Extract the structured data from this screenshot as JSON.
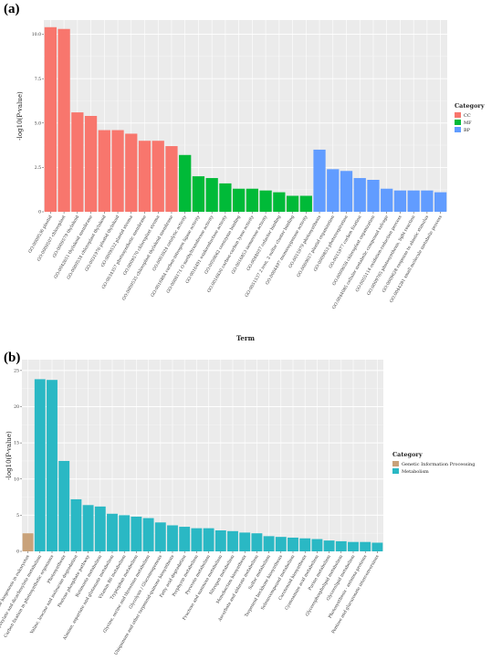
{
  "panels": {
    "a_label": "(a)",
    "b_label": "(b)"
  },
  "chart_data": [
    {
      "type": "bar",
      "xlabel": "Term",
      "ylabel": "-log10(P-value)",
      "ylim": [
        0,
        10.8
      ],
      "yticks": [
        0,
        2.5,
        5.0,
        7.5,
        10.0
      ],
      "ytick_labels": [
        "0",
        "2.5",
        "5.0",
        "7.5",
        "10.0"
      ],
      "grid": true,
      "legend": {
        "title": "Category",
        "position": "right",
        "entries": [
          {
            "name": "CC",
            "color": "#F8766D"
          },
          {
            "name": "MF",
            "color": "#00BA38"
          },
          {
            "name": "BP",
            "color": "#619CFF"
          }
        ]
      },
      "categories": [
        "GO:0009536 plastid",
        "GO:0009507 chloroplast",
        "GO:0009579 thylakoid",
        "GO:0042651 thylakoid membrane",
        "GO:0009534 chloroplast thylakoid",
        "GO:0031976 plastid thylakoid",
        "GO:0009532 plastid stroma",
        "GO:0034357 photosynthetic membrane",
        "GO:0009570 chloroplast stroma",
        "GO:0009535 chloroplast thylakoid membrane",
        "GO:0003824 catalytic activity",
        "GO:0016884 carbon-nitrogen ligase activity",
        "GO:0008171 O-methyltransferase activity",
        "GO:0016491 oxidoreductase activity",
        "GO:0050662 coenzyme binding",
        "GO:0016830 carbon-carbon lyase activity",
        "GO:0016853 isomerase activity",
        "GO:0048037 cofactor binding",
        "GO:0051537 2 iron, 2 sulfur cluster binding",
        "GO:0004497 monooxygenase activity",
        "GO:0015979 photosynthesis",
        "GO:0009657 plastid organization",
        "GO:0009853 photorespiration",
        "GO:0015977 carbon fixation",
        "GO:0009658 chloroplast organization",
        "GO:0044085 cellular metabolic compound salvage",
        "GO:0055114 oxidation-reduction process",
        "GO:0009765 photosynthesis, light reaction",
        "GO:0009628 response to abiotic stimulus",
        "GO:0044281 small molecule metabolic process"
      ],
      "groups": [
        "CC",
        "CC",
        "CC",
        "CC",
        "CC",
        "CC",
        "CC",
        "CC",
        "CC",
        "CC",
        "MF",
        "MF",
        "MF",
        "MF",
        "MF",
        "MF",
        "MF",
        "MF",
        "MF",
        "MF",
        "BP",
        "BP",
        "BP",
        "BP",
        "BP",
        "BP",
        "BP",
        "BP",
        "BP",
        "BP"
      ],
      "values": [
        10.4,
        10.3,
        5.6,
        5.4,
        4.6,
        4.6,
        4.4,
        4.0,
        4.0,
        3.7,
        3.2,
        2.0,
        1.9,
        1.6,
        1.3,
        1.3,
        1.2,
        1.1,
        0.9,
        0.9,
        3.5,
        2.4,
        2.3,
        1.9,
        1.8,
        1.3,
        1.2,
        1.2,
        1.2,
        1.1
      ]
    },
    {
      "type": "bar",
      "xlabel": "",
      "ylabel": "-log10(P-value)",
      "ylim": [
        0,
        26.5
      ],
      "yticks": [
        0,
        5,
        10,
        15,
        20,
        25
      ],
      "ytick_labels": [
        "0",
        "5",
        "10",
        "15",
        "20",
        "25"
      ],
      "grid": true,
      "legend": {
        "title": "Category",
        "position": "right",
        "entries": [
          {
            "name": "Genetic Information Processing",
            "color": "#C9A27A"
          },
          {
            "name": "Metabolism",
            "color": "#2AB8C4"
          }
        ]
      },
      "categories": [
        "Ribosome biogenesis in eukaryotes",
        "Glyoxylate and dicarboxylate metabolism",
        "Carbon fixation in photosynthetic organisms",
        "Photosynthesis",
        "Valine, leucine and isoleucine degradation",
        "Pentose phosphate pathway",
        "Butanoate metabolism",
        "Alanine, aspartate and glutamate metabolism",
        "Vitamin B6 metabolism",
        "Tryptophan metabolism",
        "Glycine, serine and threonine metabolism",
        "Glycolysis / Gluconeogenesis",
        "Ubiquinone and other terpenoid-quinone biosynthesis",
        "Fatty acid degradation",
        "Porphyrin metabolism",
        "Pyruvate metabolism",
        "Fructose and mannose metabolism",
        "Nitrogen metabolism",
        "Monobactam biosynthesis",
        "Ascorbate and aldarate metabolism",
        "Sulfur metabolism",
        "Terpenoid backbone biosynthesis",
        "Selenocompound metabolism",
        "Carotenoid biosynthesis",
        "Cyanoamino acid metabolism",
        "Purine metabolism",
        "Glycerophospholipid metabolism",
        "Glycerolipid metabolism",
        "Photosynthesis - antenna proteins",
        "Pentose and glucuronate interconversions"
      ],
      "groups": [
        "Genetic Information Processing",
        "Metabolism",
        "Metabolism",
        "Metabolism",
        "Metabolism",
        "Metabolism",
        "Metabolism",
        "Metabolism",
        "Metabolism",
        "Metabolism",
        "Metabolism",
        "Metabolism",
        "Metabolism",
        "Metabolism",
        "Metabolism",
        "Metabolism",
        "Metabolism",
        "Metabolism",
        "Metabolism",
        "Metabolism",
        "Metabolism",
        "Metabolism",
        "Metabolism",
        "Metabolism",
        "Metabolism",
        "Metabolism",
        "Metabolism",
        "Metabolism",
        "Metabolism",
        "Metabolism"
      ],
      "values": [
        2.5,
        23.8,
        23.7,
        12.5,
        7.2,
        6.4,
        6.2,
        5.2,
        5.0,
        4.8,
        4.6,
        4.0,
        3.6,
        3.4,
        3.2,
        3.2,
        2.9,
        2.8,
        2.6,
        2.5,
        2.1,
        2.0,
        1.9,
        1.8,
        1.7,
        1.5,
        1.4,
        1.3,
        1.3,
        1.2
      ]
    }
  ]
}
